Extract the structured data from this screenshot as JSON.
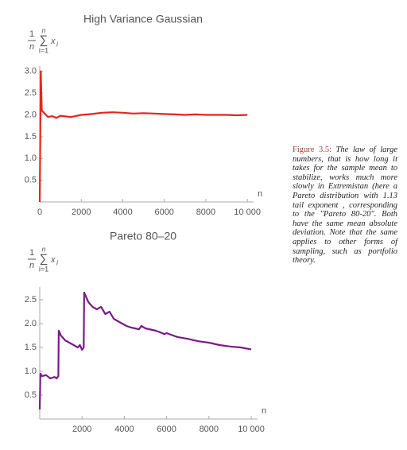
{
  "chart_data": [
    {
      "type": "line",
      "title": "High Variance Gaussian",
      "y_label": {
        "numerator": "1",
        "denominator": "n",
        "sum_upper": "n",
        "operator": "∑",
        "sum_lower": "i=1",
        "term": "x",
        "term_index": "i"
      },
      "x_label": "n",
      "x": [
        1,
        50,
        100,
        200,
        400,
        600,
        800,
        1000,
        1500,
        2000,
        2500,
        3000,
        3500,
        4000,
        4500,
        5000,
        5500,
        6000,
        6500,
        7000,
        7500,
        8000,
        8500,
        9000,
        9500,
        10000
      ],
      "values": [
        0,
        3.0,
        2.1,
        2.05,
        1.95,
        1.97,
        1.93,
        1.98,
        1.95,
        2.0,
        2.02,
        2.05,
        2.06,
        2.05,
        2.03,
        2.04,
        2.03,
        2.02,
        2.01,
        2.0,
        2.01,
        2.0,
        2.0,
        2.0,
        1.99,
        2.0
      ],
      "color": "#e8231c",
      "xlim": [
        0,
        10300
      ],
      "ylim": [
        0,
        3.05
      ],
      "xticks": [
        0,
        2000,
        4000,
        6000,
        8000,
        {
          "value": 10000,
          "label": "10 000"
        }
      ],
      "yticks": [
        0.5,
        {
          "value": 1.0,
          "label": "1.0"
        },
        1.5,
        {
          "value": 2.0,
          "label": "2.0"
        },
        2.5,
        {
          "value": 3.0,
          "label": "3.0"
        }
      ],
      "grid": false
    },
    {
      "type": "line",
      "title": "Pareto 80–20",
      "y_label": {
        "numerator": "1",
        "denominator": "n",
        "sum_upper": "n",
        "operator": "∑",
        "sum_lower": "i=1",
        "term": "x",
        "term_index": "i"
      },
      "x_label": "n",
      "x": [
        1,
        30,
        100,
        300,
        500,
        700,
        800,
        880,
        900,
        1000,
        1200,
        1400,
        1600,
        1800,
        1900,
        2000,
        2080,
        2100,
        2300,
        2500,
        2700,
        2900,
        3100,
        3300,
        3500,
        3700,
        3900,
        4100,
        4300,
        4500,
        4700,
        4800,
        5000,
        5500,
        5900,
        6000,
        6500,
        7000,
        7500,
        8000,
        8500,
        9000,
        9500,
        10000
      ],
      "values": [
        0.2,
        0.95,
        0.9,
        0.92,
        0.85,
        0.88,
        0.85,
        0.9,
        1.85,
        1.75,
        1.65,
        1.6,
        1.55,
        1.5,
        1.55,
        1.45,
        1.5,
        2.65,
        2.45,
        2.35,
        2.3,
        2.35,
        2.2,
        2.25,
        2.1,
        2.05,
        2.0,
        1.95,
        1.92,
        1.9,
        1.88,
        1.95,
        1.9,
        1.85,
        1.78,
        1.8,
        1.72,
        1.68,
        1.63,
        1.6,
        1.55,
        1.52,
        1.5,
        1.46
      ],
      "color": "#7b1a8a",
      "xlim": [
        0,
        10300
      ],
      "ylim": [
        0,
        2.7
      ],
      "xticks": [
        2000,
        4000,
        6000,
        8000,
        {
          "value": 10000,
          "label": "10 000"
        }
      ],
      "yticks": [
        0.5,
        {
          "value": 1.0,
          "label": "1.0"
        },
        1.5,
        {
          "value": 2.0,
          "label": "2.0"
        },
        2.5
      ],
      "grid": false
    }
  ],
  "caption": {
    "label": "Figure 3.5:",
    "text": "The law of large numbers, that is how long it takes for the sample mean to stabilize, works much more slowly in Extremistan (here a Pareto distribution with 1.13 tail exponent , corresponding to the \"Pareto 80-20\". Both have the same mean absolute deviation. Note that the same applies to other forms of sampling, such as portfolio theory."
  }
}
